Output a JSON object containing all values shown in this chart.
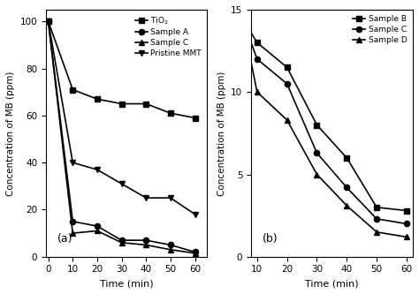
{
  "panel_a": {
    "TiO2": {
      "x": [
        0,
        10,
        20,
        30,
        40,
        50,
        60
      ],
      "y": [
        100,
        71,
        67,
        65,
        65,
        61,
        59
      ],
      "marker": "s",
      "label": "TiO$_2$"
    },
    "SampleA": {
      "x": [
        0,
        10,
        20,
        30,
        40,
        50,
        60
      ],
      "y": [
        100,
        15,
        13,
        7,
        7,
        5,
        2
      ],
      "marker": "o",
      "label": "Sample A"
    },
    "SampleC": {
      "x": [
        0,
        10,
        20,
        30,
        40,
        50,
        60
      ],
      "y": [
        100,
        10,
        11,
        6,
        5,
        3,
        1.5
      ],
      "marker": "^",
      "label": "Sample C"
    },
    "PristineMMT": {
      "x": [
        0,
        10,
        20,
        30,
        40,
        50,
        60
      ],
      "y": [
        100,
        40,
        37,
        31,
        25,
        25,
        18
      ],
      "marker": "v",
      "label": "Pristine MMT"
    },
    "xlabel": "Time (min)",
    "ylabel": "Concentration of MB (ppm)",
    "xlim": [
      -1,
      65
    ],
    "ylim": [
      0,
      105
    ],
    "xticks": [
      0,
      10,
      20,
      30,
      40,
      50,
      60
    ],
    "yticks": [
      0,
      20,
      40,
      60,
      80,
      100
    ],
    "label": "(a)"
  },
  "panel_b": {
    "SampleB": {
      "x": [
        5,
        10,
        20,
        30,
        40,
        50,
        60
      ],
      "y": [
        14.5,
        13,
        11.5,
        8,
        6,
        3,
        2.8
      ],
      "marker": "s",
      "label": "Sample B"
    },
    "SampleC": {
      "x": [
        5,
        10,
        20,
        30,
        40,
        50,
        60
      ],
      "y": [
        14.5,
        12,
        10.5,
        6.3,
        4.2,
        2.3,
        2.0
      ],
      "marker": "o",
      "label": "Sample C"
    },
    "SampleD": {
      "x": [
        5,
        10,
        20,
        30,
        40,
        50,
        60
      ],
      "y": [
        14.5,
        10,
        8.3,
        5,
        3.1,
        1.5,
        1.2
      ],
      "marker": "^",
      "label": "Sample D"
    },
    "xlabel": "Time (min)",
    "ylabel": "Concentration of MB (ppm)",
    "xlim": [
      8,
      62
    ],
    "ylim": [
      0,
      15
    ],
    "xticks": [
      10,
      20,
      30,
      40,
      50,
      60
    ],
    "yticks": [
      0,
      5,
      10,
      15
    ],
    "label": "(b)"
  },
  "line_color": "black",
  "markersize": 4.5,
  "linewidth": 1.2
}
